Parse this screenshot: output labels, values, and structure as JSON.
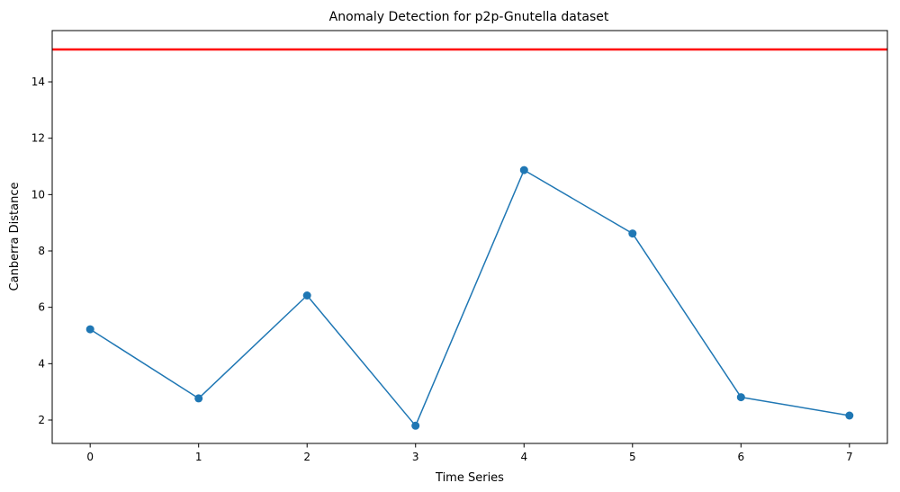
{
  "chart_data": {
    "type": "line",
    "title": "Anomaly Detection for p2p-Gnutella dataset",
    "xlabel": "Time Series",
    "ylabel": "Canberra Distance",
    "x": [
      0,
      1,
      2,
      3,
      4,
      5,
      6,
      7
    ],
    "series": [
      {
        "values": [
          5.22,
          2.77,
          6.42,
          1.8,
          10.87,
          8.62,
          2.81,
          2.16
        ],
        "color": "#1f77b4",
        "marker": "circle"
      }
    ],
    "threshold": {
      "value": 15.15,
      "color": "#ff0000"
    },
    "xticks": [
      "0",
      "1",
      "2",
      "3",
      "4",
      "5",
      "6",
      "7"
    ],
    "yticks": [
      "2",
      "4",
      "6",
      "8",
      "10",
      "12",
      "14"
    ],
    "ytick_values": [
      2,
      4,
      6,
      8,
      10,
      12,
      14
    ],
    "xlim": [
      -0.35,
      7.35
    ],
    "ylim": [
      1.17,
      15.82
    ],
    "grid": false
  }
}
